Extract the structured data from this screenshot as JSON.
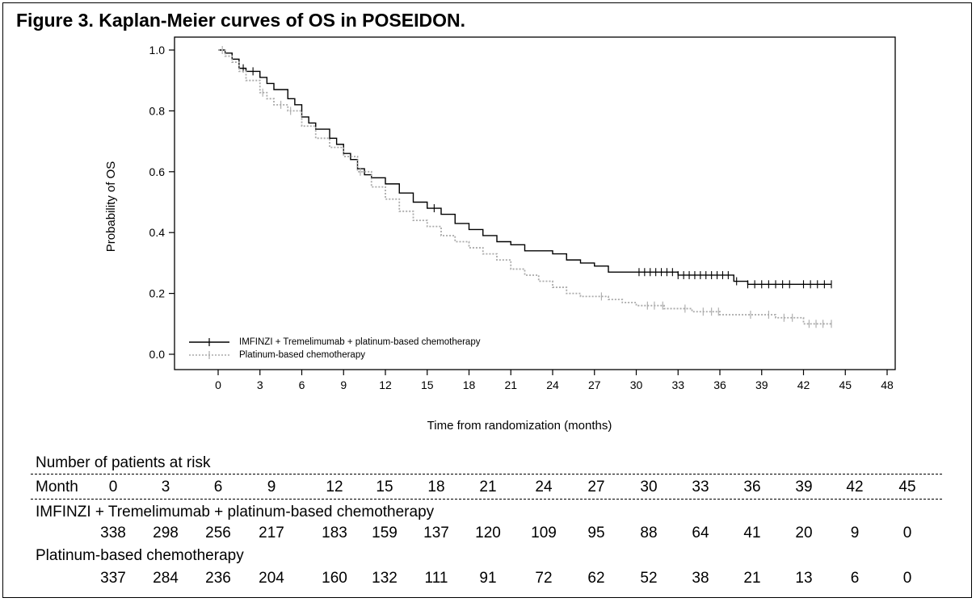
{
  "title": "Figure 3. Kaplan-Meier curves of OS in POSEIDON.",
  "chart_data": {
    "type": "line",
    "title": "Figure 3. Kaplan-Meier curves of OS in POSEIDON.",
    "xlabel": "Time from randomization (months)",
    "ylabel": "Probability of OS",
    "xlim": [
      -3,
      48
    ],
    "ylim": [
      -0.06,
      1.03
    ],
    "xticks": [
      "0",
      "3",
      "6",
      "9",
      "12",
      "15",
      "18",
      "21",
      "24",
      "27",
      "30",
      "33",
      "36",
      "39",
      "42",
      "45",
      "48"
    ],
    "yticks": [
      "0.0",
      "0.2",
      "0.4",
      "0.6",
      "0.8",
      "1.0"
    ],
    "legend_position": "bottom-left",
    "series": [
      {
        "name": "IMFINZI + Tremelimumab + platinum-based chemotherapy",
        "color": "#000000",
        "style": "solid",
        "points": [
          [
            0,
            1.0
          ],
          [
            0.5,
            0.99
          ],
          [
            1,
            0.97
          ],
          [
            1.5,
            0.94
          ],
          [
            2,
            0.93
          ],
          [
            3,
            0.91
          ],
          [
            3.5,
            0.89
          ],
          [
            4,
            0.87
          ],
          [
            5,
            0.84
          ],
          [
            5.5,
            0.82
          ],
          [
            6,
            0.78
          ],
          [
            6.5,
            0.76
          ],
          [
            7,
            0.74
          ],
          [
            8,
            0.71
          ],
          [
            8.5,
            0.69
          ],
          [
            9,
            0.66
          ],
          [
            9.5,
            0.64
          ],
          [
            10,
            0.61
          ],
          [
            10.5,
            0.59
          ],
          [
            11,
            0.58
          ],
          [
            12,
            0.56
          ],
          [
            13,
            0.53
          ],
          [
            14,
            0.5
          ],
          [
            15,
            0.48
          ],
          [
            16,
            0.46
          ],
          [
            17,
            0.43
          ],
          [
            18,
            0.41
          ],
          [
            19,
            0.39
          ],
          [
            20,
            0.37
          ],
          [
            21,
            0.36
          ],
          [
            22,
            0.34
          ],
          [
            23,
            0.34
          ],
          [
            24,
            0.33
          ],
          [
            25,
            0.31
          ],
          [
            26,
            0.3
          ],
          [
            27,
            0.29
          ],
          [
            28,
            0.27
          ],
          [
            30,
            0.27
          ],
          [
            33,
            0.26
          ],
          [
            34,
            0.26
          ],
          [
            36,
            0.26
          ],
          [
            37,
            0.24
          ],
          [
            38,
            0.23
          ],
          [
            40,
            0.23
          ],
          [
            42,
            0.23
          ],
          [
            44,
            0.23
          ]
        ],
        "censor_months": [
          1.8,
          2.5,
          15.5,
          30.2,
          30.6,
          31,
          31.4,
          31.8,
          32.2,
          32.6,
          33,
          33.4,
          33.8,
          34.2,
          34.6,
          35,
          35.4,
          35.8,
          36.2,
          36.6,
          37.2,
          38,
          38.5,
          39,
          39.5,
          40,
          40.5,
          41,
          42,
          42.5,
          43,
          43.5,
          44
        ]
      },
      {
        "name": "Platinum-based chemotherapy",
        "color": "#aaaaaa",
        "style": "dotted",
        "points": [
          [
            0,
            1.0
          ],
          [
            0.5,
            0.98
          ],
          [
            1,
            0.96
          ],
          [
            1.5,
            0.93
          ],
          [
            2,
            0.9
          ],
          [
            3,
            0.86
          ],
          [
            3.5,
            0.84
          ],
          [
            4,
            0.82
          ],
          [
            5,
            0.8
          ],
          [
            6,
            0.75
          ],
          [
            7,
            0.71
          ],
          [
            8,
            0.68
          ],
          [
            9,
            0.65
          ],
          [
            10,
            0.6
          ],
          [
            11,
            0.55
          ],
          [
            12,
            0.51
          ],
          [
            13,
            0.47
          ],
          [
            14,
            0.44
          ],
          [
            15,
            0.42
          ],
          [
            16,
            0.39
          ],
          [
            17,
            0.37
          ],
          [
            18,
            0.35
          ],
          [
            19,
            0.33
          ],
          [
            20,
            0.31
          ],
          [
            21,
            0.28
          ],
          [
            22,
            0.26
          ],
          [
            23,
            0.24
          ],
          [
            24,
            0.22
          ],
          [
            25,
            0.2
          ],
          [
            26,
            0.19
          ],
          [
            27,
            0.19
          ],
          [
            28,
            0.18
          ],
          [
            29,
            0.17
          ],
          [
            30,
            0.16
          ],
          [
            31,
            0.16
          ],
          [
            32,
            0.15
          ],
          [
            33,
            0.15
          ],
          [
            34,
            0.14
          ],
          [
            35,
            0.14
          ],
          [
            36,
            0.13
          ],
          [
            37,
            0.13
          ],
          [
            38,
            0.13
          ],
          [
            39,
            0.13
          ],
          [
            40,
            0.12
          ],
          [
            41,
            0.12
          ],
          [
            42,
            0.1
          ],
          [
            44,
            0.1
          ]
        ],
        "censor_months": [
          0.3,
          3.2,
          4.5,
          5.2,
          10.2,
          27.5,
          30.8,
          31.3,
          31.9,
          33.5,
          34.8,
          35.4,
          35.9,
          38.2,
          39.5,
          40.6,
          41.2,
          42.4,
          42.9,
          43.4,
          44
        ]
      }
    ]
  },
  "risk_table": {
    "heading": "Number of patients at risk",
    "month_label": "Month",
    "months": [
      "0",
      "3",
      "6",
      "9",
      "12",
      "15",
      "18",
      "21",
      "24",
      "27",
      "30",
      "33",
      "36",
      "39",
      "42",
      "45"
    ],
    "rows": [
      {
        "label": "IMFINZI + Tremelimumab + platinum-based chemotherapy",
        "values": [
          "338",
          "298",
          "256",
          "217",
          "183",
          "159",
          "137",
          "120",
          "109",
          "95",
          "88",
          "64",
          "41",
          "20",
          "9",
          "0"
        ]
      },
      {
        "label": "Platinum-based chemotherapy",
        "values": [
          "337",
          "284",
          "236",
          "204",
          "160",
          "132",
          "111",
          "91",
          "72",
          "62",
          "52",
          "38",
          "21",
          "13",
          "6",
          "0"
        ]
      }
    ]
  }
}
